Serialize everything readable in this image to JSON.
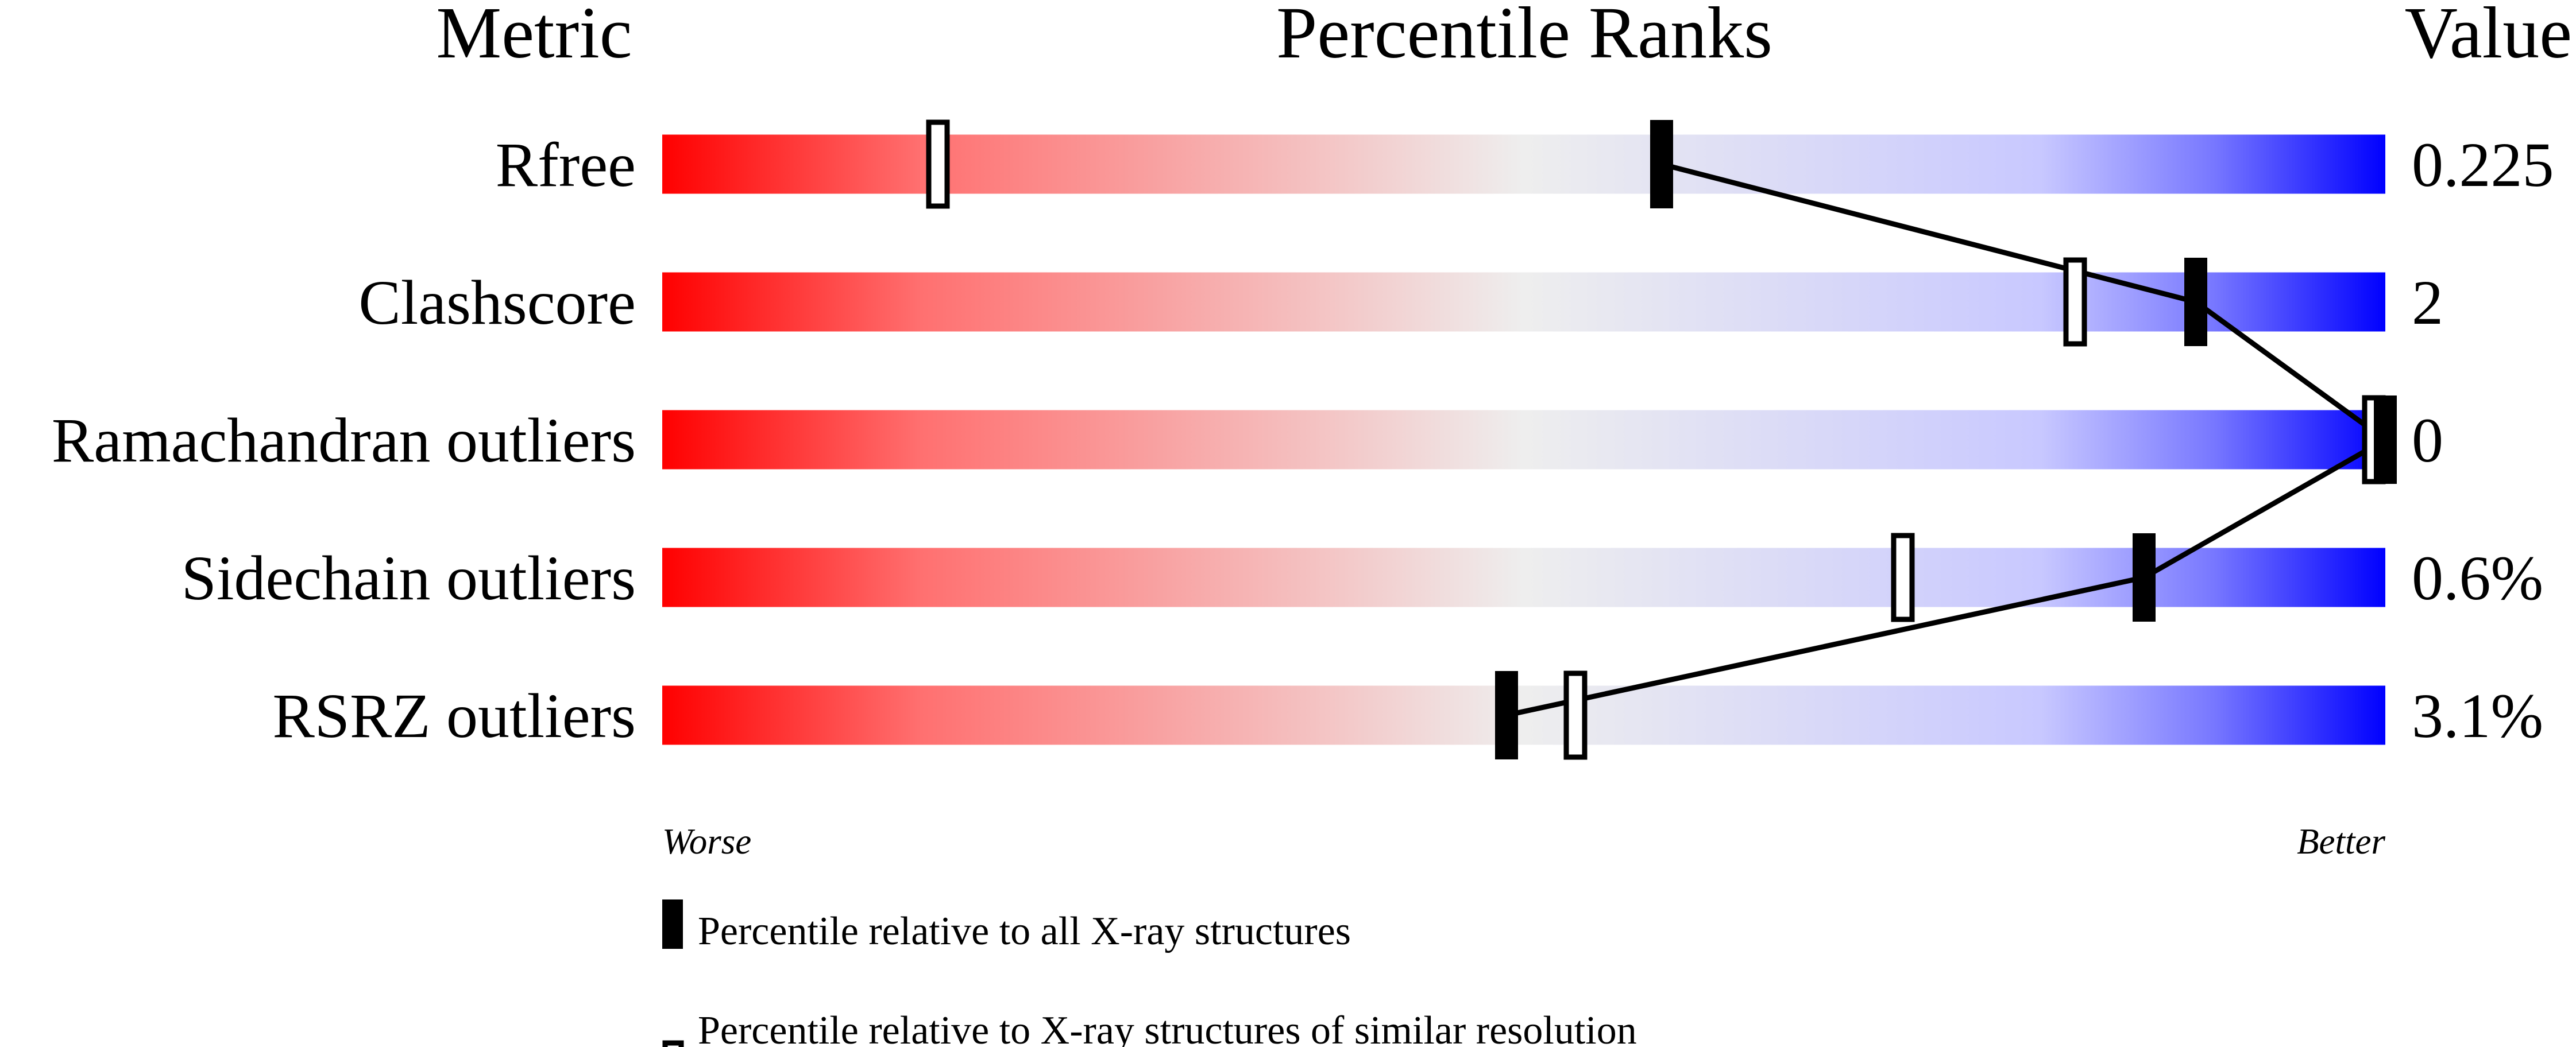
{
  "chart_data": {
    "type": "percentile-slider",
    "headers": {
      "metric": "Metric",
      "percentile": "Percentile Ranks",
      "value": "Value"
    },
    "axis": {
      "left_label": "Worse",
      "right_label": "Better",
      "range": [
        0,
        100
      ]
    },
    "colors": {
      "worse": "#ff0000",
      "middle": "#eeeeee",
      "better": "#0000ff",
      "marker": "#000000"
    },
    "metrics": [
      {
        "name": "Rfree",
        "value": "0.225",
        "percentile_all": 58,
        "percentile_similar": 16
      },
      {
        "name": "Clashscore",
        "value": "2",
        "percentile_all": 89,
        "percentile_similar": 82
      },
      {
        "name": "Ramachandran outliers",
        "value": "0",
        "percentile_all": 100,
        "percentile_similar": 100
      },
      {
        "name": "Sidechain outliers",
        "value": "0.6%",
        "percentile_all": 86,
        "percentile_similar": 72
      },
      {
        "name": "RSRZ outliers",
        "value": "3.1%",
        "percentile_all": 49,
        "percentile_similar": 53
      }
    ],
    "legend": [
      {
        "marker": "filled",
        "label": "Percentile relative to all X-ray structures"
      },
      {
        "marker": "hollow",
        "label": "Percentile relative to X-ray structures of similar resolution"
      }
    ]
  }
}
